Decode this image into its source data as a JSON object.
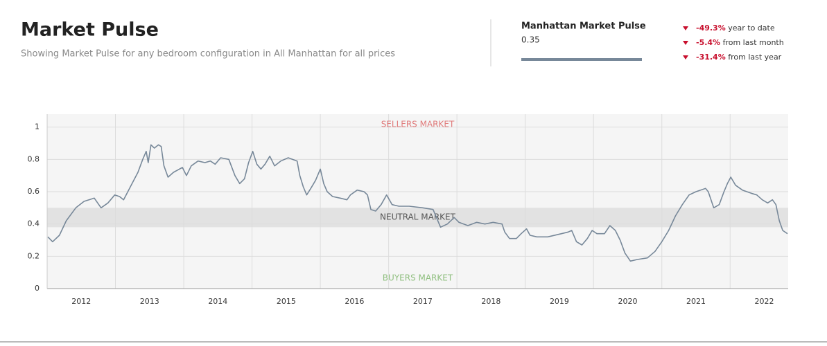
{
  "header": {
    "title": "Market Pulse",
    "subtitle": "Showing Market Pulse for any bedroom configuration in All Manhattan for all prices"
  },
  "summary": {
    "title": "Manhattan Market Pulse",
    "value": "0.35",
    "changes": [
      {
        "value": "-49.3%",
        "text": "year to date"
      },
      {
        "value": "-5.4%",
        "text": "from last month"
      },
      {
        "value": "-31.4%",
        "text": "from last year"
      }
    ]
  },
  "chart_data": {
    "type": "line",
    "annotations": [
      "SELLERS MARKET",
      "NEUTRAL MARKET",
      "BUYERS MARKET"
    ],
    "neutral_range": [
      0.38,
      0.5
    ],
    "x": [
      2012.01,
      2012.08,
      2012.18,
      2012.28,
      2012.42,
      2012.54,
      2012.69,
      2012.79,
      2012.89,
      2012.99,
      2013.06,
      2013.12,
      2013.23,
      2013.33,
      2013.4,
      2013.45,
      2013.48,
      2013.52,
      2013.57,
      2013.63,
      2013.67,
      2013.71,
      2013.77,
      2013.85,
      2013.98,
      2014.04,
      2014.11,
      2014.21,
      2014.31,
      2014.39,
      2014.46,
      2014.54,
      2014.66,
      2014.75,
      2014.82,
      2014.89,
      2014.95,
      2015.01,
      2015.07,
      2015.13,
      2015.19,
      2015.26,
      2015.33,
      2015.42,
      2015.53,
      2015.66,
      2015.7,
      2015.75,
      2015.8,
      2015.86,
      2015.93,
      2016.0,
      2016.05,
      2016.1,
      2016.18,
      2016.29,
      2016.39,
      2016.44,
      2016.54,
      2016.64,
      2016.69,
      2016.74,
      2016.81,
      2016.89,
      2016.97,
      2017.05,
      2017.15,
      2017.3,
      2017.5,
      2017.65,
      2017.7,
      2017.76,
      2017.86,
      2017.96,
      2018.03,
      2018.16,
      2018.29,
      2018.41,
      2018.53,
      2018.66,
      2018.7,
      2018.77,
      2018.87,
      2018.94,
      2019.02,
      2019.07,
      2019.17,
      2019.33,
      2019.53,
      2019.63,
      2019.68,
      2019.75,
      2019.83,
      2019.91,
      2019.98,
      2020.05,
      2020.16,
      2020.24,
      2020.32,
      2020.39,
      2020.46,
      2020.54,
      2020.64,
      2020.79,
      2020.9,
      2021.0,
      2021.1,
      2021.2,
      2021.3,
      2021.4,
      2021.5,
      2021.64,
      2021.68,
      2021.76,
      2021.84,
      2021.91,
      2021.96,
      2022.01,
      2022.08,
      2022.18,
      2022.31,
      2022.39,
      2022.47,
      2022.55,
      2022.62,
      2022.67,
      2022.72,
      2022.77,
      2022.84
    ],
    "series": [
      {
        "name": "Market Pulse",
        "color": "#778899",
        "values": [
          0.32,
          0.29,
          0.33,
          0.42,
          0.5,
          0.54,
          0.56,
          0.5,
          0.53,
          0.58,
          0.57,
          0.55,
          0.64,
          0.72,
          0.8,
          0.85,
          0.78,
          0.89,
          0.87,
          0.89,
          0.88,
          0.76,
          0.69,
          0.72,
          0.75,
          0.7,
          0.76,
          0.79,
          0.78,
          0.79,
          0.77,
          0.81,
          0.8,
          0.7,
          0.65,
          0.68,
          0.78,
          0.85,
          0.77,
          0.74,
          0.77,
          0.82,
          0.76,
          0.79,
          0.81,
          0.79,
          0.7,
          0.63,
          0.58,
          0.62,
          0.67,
          0.74,
          0.65,
          0.6,
          0.57,
          0.56,
          0.55,
          0.58,
          0.61,
          0.6,
          0.58,
          0.49,
          0.48,
          0.52,
          0.58,
          0.52,
          0.51,
          0.51,
          0.5,
          0.49,
          0.44,
          0.38,
          0.4,
          0.44,
          0.41,
          0.39,
          0.41,
          0.4,
          0.41,
          0.4,
          0.35,
          0.31,
          0.31,
          0.34,
          0.37,
          0.33,
          0.32,
          0.32,
          0.34,
          0.35,
          0.36,
          0.29,
          0.27,
          0.31,
          0.36,
          0.34,
          0.34,
          0.39,
          0.36,
          0.3,
          0.22,
          0.17,
          0.18,
          0.19,
          0.23,
          0.29,
          0.36,
          0.45,
          0.52,
          0.58,
          0.6,
          0.62,
          0.6,
          0.5,
          0.52,
          0.6,
          0.65,
          0.69,
          0.64,
          0.61,
          0.59,
          0.58,
          0.55,
          0.53,
          0.55,
          0.52,
          0.42,
          0.36,
          0.34
        ]
      }
    ],
    "xlim": [
      2012,
      2022.85
    ],
    "xticks": [
      {
        "value": 2012.5,
        "label": "2012"
      },
      {
        "value": 2013.5,
        "label": "2013"
      },
      {
        "value": 2014.5,
        "label": "2014"
      },
      {
        "value": 2015.5,
        "label": "2015"
      },
      {
        "value": 2016.5,
        "label": "2016"
      },
      {
        "value": 2017.5,
        "label": "2017"
      },
      {
        "value": 2018.5,
        "label": "2018"
      },
      {
        "value": 2019.5,
        "label": "2019"
      },
      {
        "value": 2020.5,
        "label": "2020"
      },
      {
        "value": 2021.5,
        "label": "2021"
      },
      {
        "value": 2022.5,
        "label": "2022"
      }
    ],
    "ylim": [
      0,
      1.08
    ],
    "yticks": [
      0,
      0.2,
      0.4,
      0.6,
      0.8,
      1
    ],
    "grid": true
  }
}
